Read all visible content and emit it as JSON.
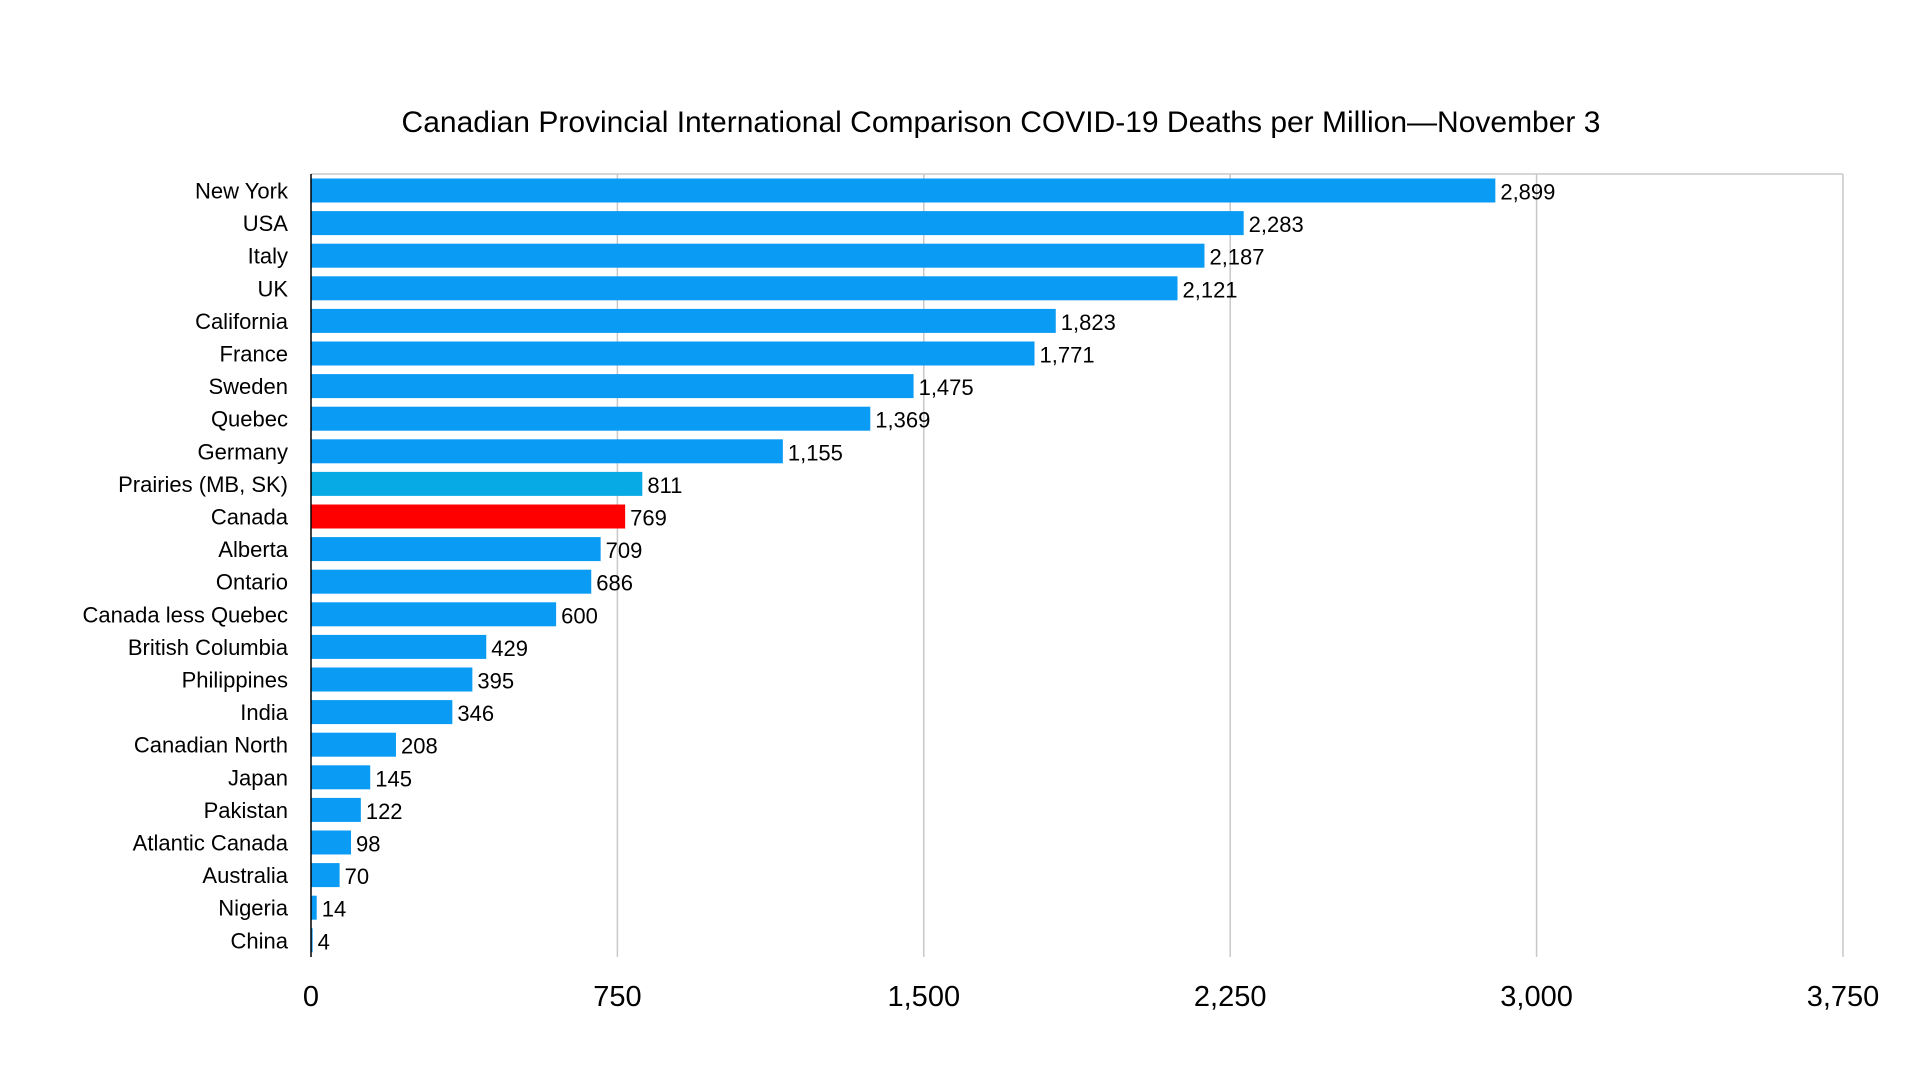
{
  "chart_data": {
    "type": "bar",
    "orientation": "horizontal",
    "title": "Canadian Provincial International Comparison COVID-19 Deaths per Million—November 3",
    "xlabel": "",
    "ylabel": "",
    "xlim": [
      0,
      3750
    ],
    "x_ticks": [
      0,
      750,
      1500,
      2250,
      3000,
      3750
    ],
    "x_tick_labels": [
      "0",
      "750",
      "1,500",
      "2,250",
      "3,000",
      "3,750"
    ],
    "grid": "vertical",
    "legend": "none",
    "categories": [
      "New York",
      "USA",
      "Italy",
      "UK",
      "California",
      "France",
      "Sweden",
      "Quebec",
      "Germany",
      "Prairies (MB, SK)",
      "Canada",
      "Alberta",
      "Ontario",
      "Canada less Quebec",
      "British Columbia",
      "Philippines",
      "India",
      "Canadian North",
      "Japan",
      "Pakistan",
      "Atlantic Canada",
      "Australia",
      "Nigeria",
      "China"
    ],
    "values": [
      2899,
      2283,
      2187,
      2121,
      1823,
      1771,
      1475,
      1369,
      1155,
      811,
      769,
      709,
      686,
      600,
      429,
      395,
      346,
      208,
      145,
      122,
      98,
      70,
      14,
      4
    ],
    "value_labels": [
      "2,899",
      "2,283",
      "2,187",
      "2,121",
      "1,823",
      "1,771",
      "1,475",
      "1,369",
      "1,155",
      "811",
      "769",
      "709",
      "686",
      "600",
      "429",
      "395",
      "346",
      "208",
      "145",
      "122",
      "98",
      "70",
      "14",
      "4"
    ],
    "colors": {
      "default": "#0A9BF4",
      "Prairies (MB, SK)": "#08AAE6",
      "Canada": "#FF0000",
      "grid": "#C8C8C8",
      "axis": "#000000"
    }
  }
}
